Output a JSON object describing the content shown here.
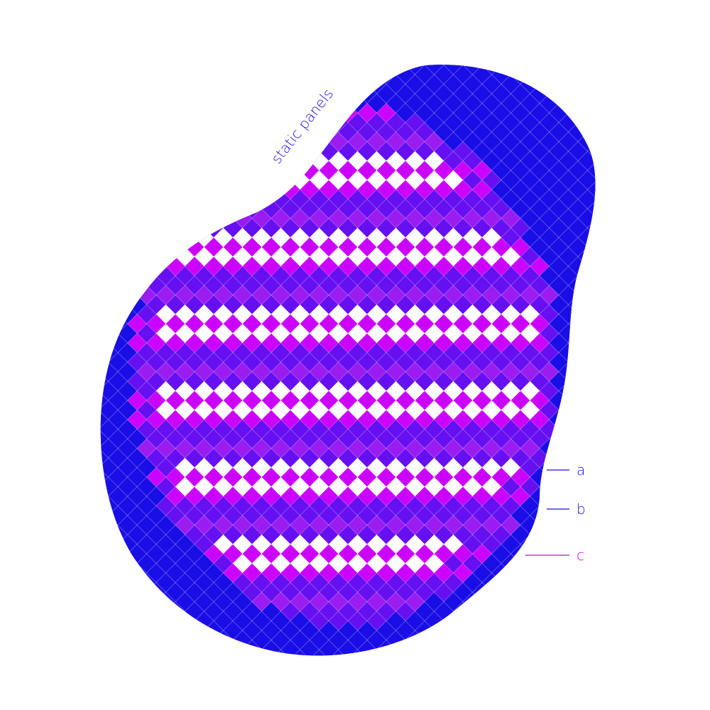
{
  "title": "static panels",
  "palette": {
    "outer": "#1a0ee6",
    "mid": "#6610f2",
    "violet": "#9b1cf0",
    "magenta": "#cc00ff",
    "light": "#ffffff",
    "grid": "#ffffff"
  },
  "legend": [
    {
      "key": "a",
      "color": "#1a0ee6"
    },
    {
      "key": "b",
      "color": "#1a0ee6"
    },
    {
      "key": "c",
      "color": "#cc00ff"
    }
  ]
}
